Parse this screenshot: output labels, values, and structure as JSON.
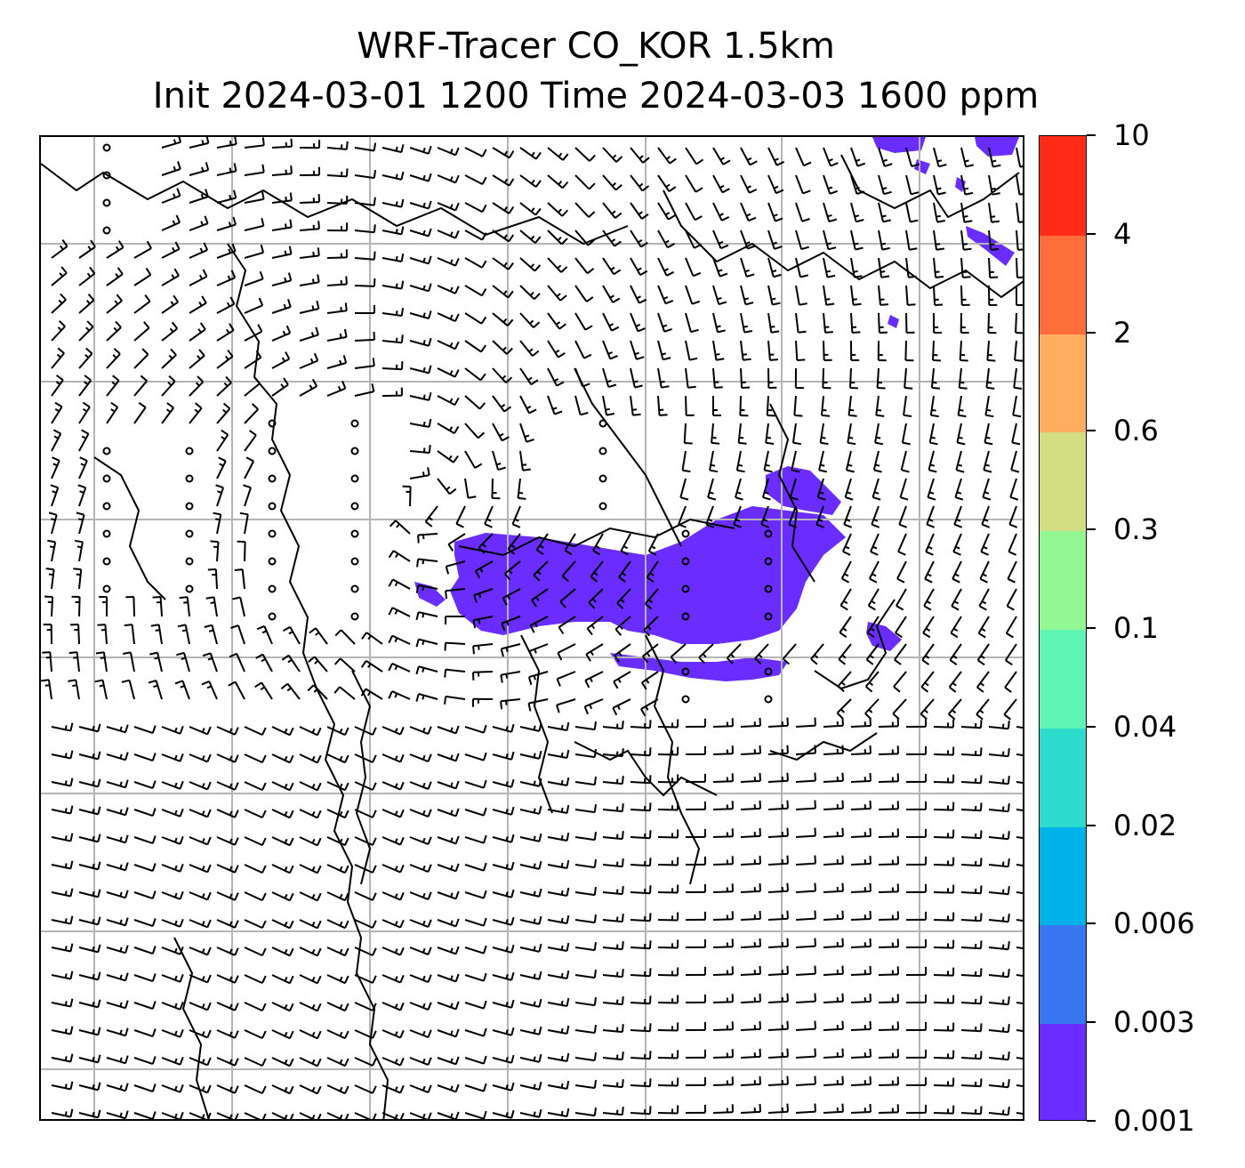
{
  "title": {
    "line1": "WRF-Tracer CO_KOR 1.5km",
    "line2": "Init 2024-03-01 1200 Time 2024-03-03 1600 ppm"
  },
  "colorbar": {
    "levels": [
      "0.001",
      "0.003",
      "0.006",
      "0.02",
      "0.04",
      "0.1",
      "0.3",
      "0.6",
      "2",
      "4",
      "10"
    ],
    "colors": [
      "#6a2cff",
      "#3876f2",
      "#00b2e8",
      "#2edcce",
      "#5ff5b4",
      "#93f794",
      "#d3de82",
      "#ffad5e",
      "#ff6e3a",
      "#ff2b16"
    ]
  },
  "map": {
    "features": [
      "wind-barbs",
      "calm-wind-circles",
      "coastlines",
      "lat-lon-gridlines",
      "co-tracer-shading"
    ],
    "tracer_color": "#6a2cff",
    "gridline_color": "#b4b4b4"
  }
}
